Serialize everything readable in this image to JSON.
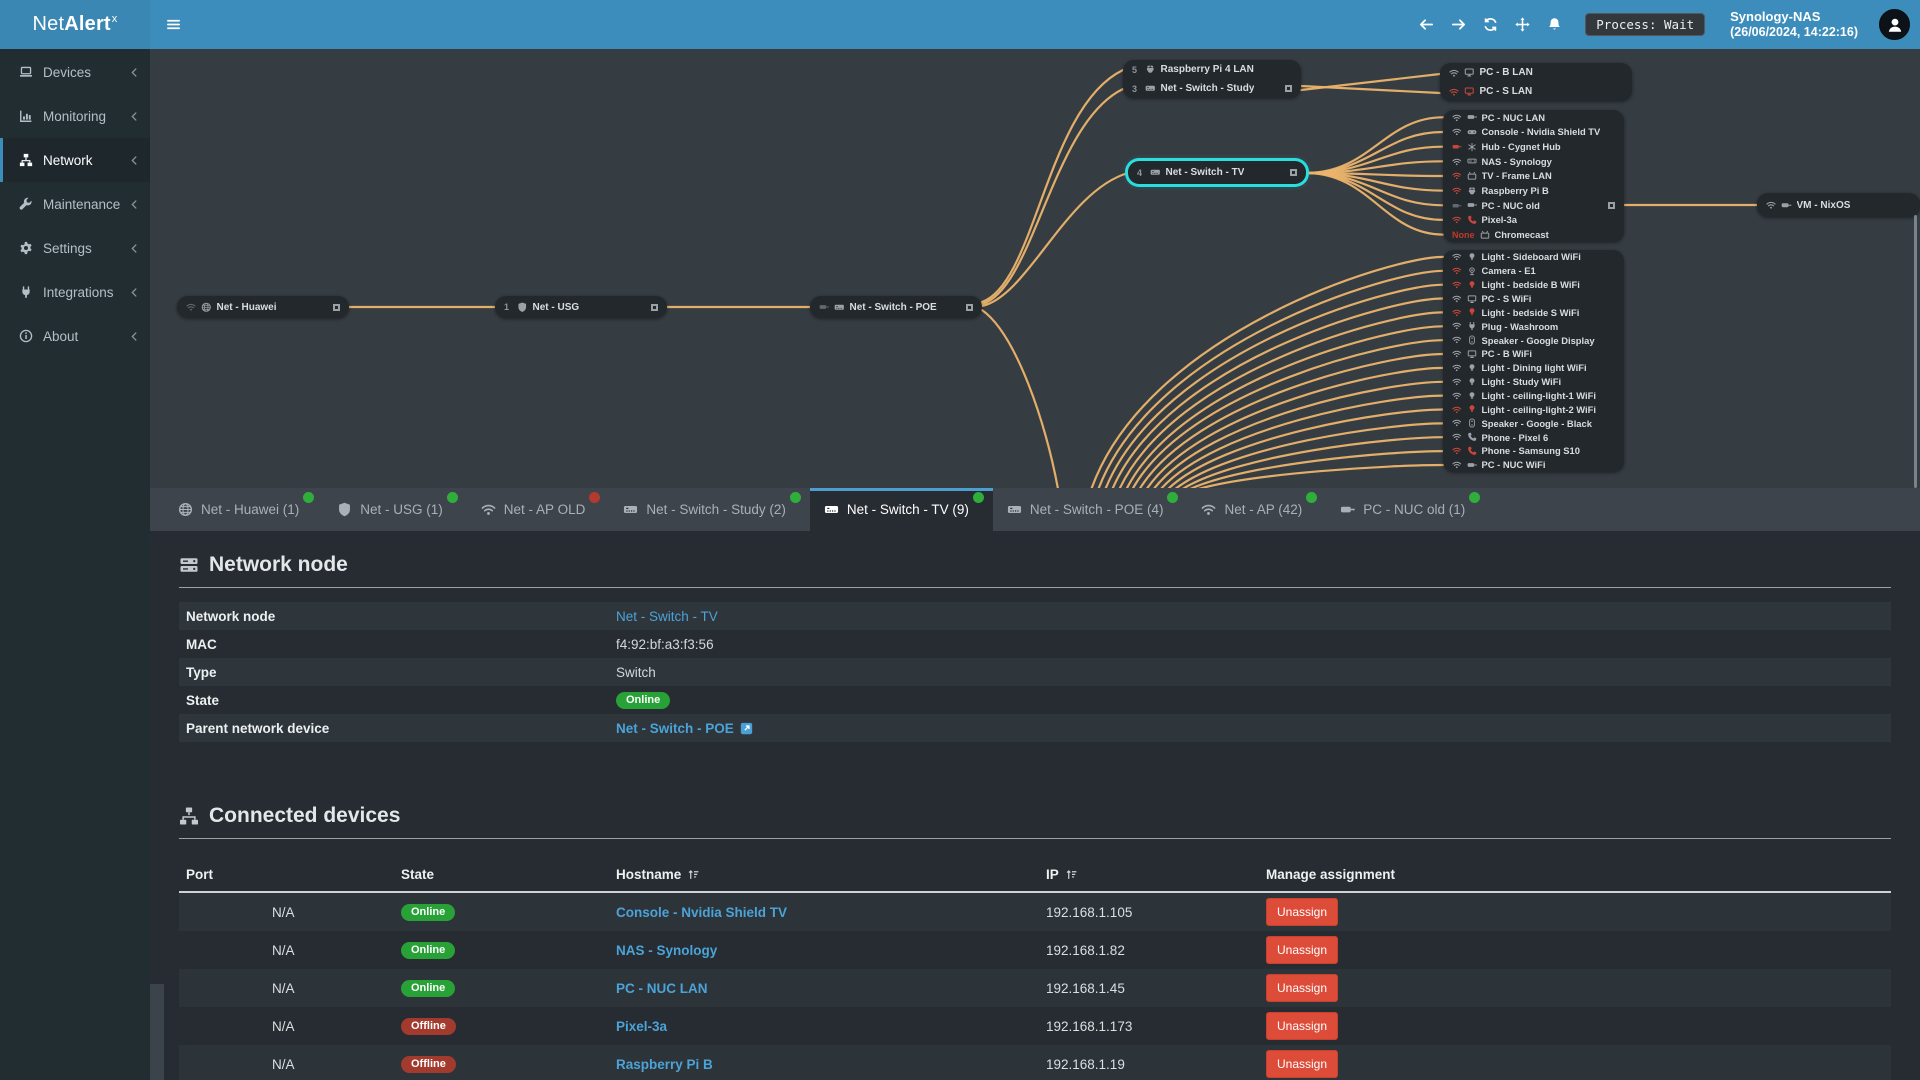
{
  "topbar": {
    "logo": {
      "prefix": "Net",
      "bold": "Alert",
      "sup": "x"
    },
    "process_badge": "Process: Wait",
    "host_name": "Synology-NAS",
    "host_time": "(26/06/2024, 14:22:16)"
  },
  "sidebar": {
    "items": [
      {
        "label": "Devices",
        "icon": "laptop",
        "active": false
      },
      {
        "label": "Monitoring",
        "icon": "chart",
        "active": false
      },
      {
        "label": "Network",
        "icon": "network",
        "active": true
      },
      {
        "label": "Maintenance",
        "icon": "wrench",
        "active": false
      },
      {
        "label": "Settings",
        "icon": "gear",
        "active": false
      },
      {
        "label": "Integrations",
        "icon": "plug",
        "active": false
      },
      {
        "label": "About",
        "icon": "info",
        "active": false
      }
    ]
  },
  "diagram": {
    "huawei": {
      "label": "Net - Huawei",
      "conn": "wifi",
      "conn_color": "dim",
      "icon": "globe",
      "connector": true
    },
    "usg": {
      "label": "Net - USG",
      "badge": "1",
      "icon": "shield",
      "connector": true
    },
    "poe": {
      "label": "Net - Switch - POE",
      "conn": "eth",
      "conn_color": "dim",
      "icon": "switch",
      "connector": true
    },
    "study_group": {
      "rows": [
        {
          "badge": "5",
          "icon": "raspberry",
          "icon_color": "gray",
          "label": "Raspberry Pi 4 LAN"
        },
        {
          "badge": "3",
          "icon": "switch",
          "icon_color": "gray",
          "label": "Net - Switch - Study",
          "connector": true
        }
      ]
    },
    "pc_group": {
      "rows": [
        {
          "conn": "wifi",
          "conn_color": "gray",
          "icon": "pc",
          "icon_color": "gray",
          "label": "PC - B LAN"
        },
        {
          "conn": "wifi",
          "conn_color": "red",
          "icon": "pc",
          "icon_color": "red",
          "label": "PC - S LAN"
        }
      ]
    },
    "tv": {
      "label": "Net - Switch - TV",
      "badge": "4",
      "icon": "switch",
      "connector": true,
      "highlighted": true
    },
    "nixos": {
      "label": "VM - NixOS",
      "conn": "wifi",
      "conn_color": "gray",
      "icon": "eth"
    },
    "group1": {
      "rows": [
        {
          "conn": "wifi",
          "conn_color": "gray",
          "icon": "eth",
          "icon_color": "gray",
          "label": "PC - NUC LAN"
        },
        {
          "conn": "wifi",
          "conn_color": "gray",
          "icon": "gamepad",
          "icon_color": "gray",
          "label": "Console - Nvidia Shield TV"
        },
        {
          "conn": "eth",
          "conn_color": "red",
          "icon": "hub",
          "icon_color": "gray",
          "label": "Hub - Cygnet Hub"
        },
        {
          "conn": "wifi",
          "conn_color": "gray",
          "icon": "hdd",
          "icon_color": "gray",
          "label": "NAS - Synology"
        },
        {
          "conn": "wifi",
          "conn_color": "red",
          "icon": "tv",
          "icon_color": "gray",
          "label": "TV - Frame LAN"
        },
        {
          "conn": "wifi",
          "conn_color": "red",
          "icon": "raspberry",
          "icon_color": "gray",
          "label": "Raspberry Pi B"
        },
        {
          "conn": "eth",
          "conn_color": "dim",
          "icon": "eth",
          "icon_color": "gray",
          "label": "PC - NUC old",
          "connector": true
        },
        {
          "conn": "wifi",
          "conn_color": "red",
          "icon": "phone",
          "icon_color": "red",
          "label": "Pixel-3a"
        },
        {
          "port_label": "None",
          "icon": "tv",
          "icon_color": "gray",
          "label": "Chromecast"
        }
      ]
    },
    "group2": {
      "rows": [
        {
          "conn": "wifi",
          "conn_color": "gray",
          "icon": "bulb",
          "icon_color": "gray",
          "label": "Light - Sideboard WiFi"
        },
        {
          "conn": "wifi",
          "conn_color": "red",
          "icon": "camera",
          "icon_color": "gray",
          "label": "Camera - E1"
        },
        {
          "conn": "wifi",
          "conn_color": "red",
          "icon": "bulb",
          "icon_color": "red",
          "label": "Light - bedside B WiFi"
        },
        {
          "conn": "wifi",
          "conn_color": "gray",
          "icon": "pc",
          "icon_color": "gray",
          "label": "PC - S WiFi"
        },
        {
          "conn": "wifi",
          "conn_color": "red",
          "icon": "bulb",
          "icon_color": "red",
          "label": "Light - bedside S WiFi"
        },
        {
          "conn": "wifi",
          "conn_color": "gray",
          "icon": "plug",
          "icon_color": "gray",
          "label": "Plug - Washroom"
        },
        {
          "conn": "wifi",
          "conn_color": "gray",
          "icon": "speaker",
          "icon_color": "gray",
          "label": "Speaker - Google Display"
        },
        {
          "conn": "wifi",
          "conn_color": "gray",
          "icon": "pc",
          "icon_color": "gray",
          "label": "PC - B WiFi"
        },
        {
          "conn": "wifi",
          "conn_color": "gray",
          "icon": "bulb",
          "icon_color": "gray",
          "label": "Light - Dining light WiFi"
        },
        {
          "conn": "wifi",
          "conn_color": "gray",
          "icon": "bulb",
          "icon_color": "gray",
          "label": "Light - Study WiFi"
        },
        {
          "conn": "wifi",
          "conn_color": "gray",
          "icon": "bulb",
          "icon_color": "gray",
          "label": "Light - ceiling-light-1 WiFi"
        },
        {
          "conn": "wifi",
          "conn_color": "red",
          "icon": "bulb",
          "icon_color": "red",
          "label": "Light - ceiling-light-2 WiFi"
        },
        {
          "conn": "wifi",
          "conn_color": "gray",
          "icon": "speaker",
          "icon_color": "gray",
          "label": "Speaker - Google - Black"
        },
        {
          "conn": "wifi",
          "conn_color": "gray",
          "icon": "phone",
          "icon_color": "gray",
          "label": "Phone - Pixel 6"
        },
        {
          "conn": "wifi",
          "conn_color": "red",
          "icon": "phone",
          "icon_color": "red",
          "label": "Phone - Samsung S10"
        },
        {
          "conn": "wifi",
          "conn_color": "gray",
          "icon": "eth",
          "icon_color": "gray",
          "label": "PC - NUC WiFi"
        }
      ]
    }
  },
  "tabs": [
    {
      "label": "Net - Huawei (1)",
      "icon": "globe",
      "dot": "green",
      "active": false
    },
    {
      "label": "Net - USG (1)",
      "icon": "shield",
      "dot": "green",
      "active": false
    },
    {
      "label": "Net - AP OLD",
      "icon": "wifi",
      "dot": "red",
      "active": false
    },
    {
      "label": "Net - Switch - Study (2)",
      "icon": "switch",
      "dot": "green",
      "active": false
    },
    {
      "label": "Net - Switch - TV (9)",
      "icon": "switch",
      "dot": "green",
      "active": true
    },
    {
      "label": "Net - Switch - POE (4)",
      "icon": "switch",
      "dot": "green",
      "active": false
    },
    {
      "label": "Net - AP (42)",
      "icon": "wifi",
      "dot": "green",
      "active": false
    },
    {
      "label": "PC - NUC old (1)",
      "icon": "eth",
      "dot": "green",
      "active": false
    }
  ],
  "network_node": {
    "title": "Network node",
    "rows": [
      {
        "label": "Network node",
        "value": "Net - Switch - TV",
        "link": true
      },
      {
        "label": "MAC",
        "value": "f4:92:bf:a3:f3:56"
      },
      {
        "label": "Type",
        "value": "Switch"
      },
      {
        "label": "State",
        "value": "Online",
        "pill": "online"
      },
      {
        "label": "Parent network device",
        "value": "Net - Switch - POE",
        "link": true,
        "bold": true,
        "external": true
      }
    ]
  },
  "connected_devices": {
    "title": "Connected devices",
    "columns": {
      "port": "Port",
      "state": "State",
      "hostname": "Hostname",
      "ip": "IP",
      "manage": "Manage assignment"
    },
    "rows": [
      {
        "port": "N/A",
        "state": "Online",
        "hostname": "Console - Nvidia Shield TV",
        "ip": "192.168.1.105",
        "action": "Unassign"
      },
      {
        "port": "N/A",
        "state": "Online",
        "hostname": "NAS - Synology",
        "ip": "192.168.1.82",
        "action": "Unassign"
      },
      {
        "port": "N/A",
        "state": "Online",
        "hostname": "PC - NUC LAN",
        "ip": "192.168.1.45",
        "action": "Unassign"
      },
      {
        "port": "N/A",
        "state": "Offline",
        "hostname": "Pixel-3a",
        "ip": "192.168.1.173",
        "action": "Unassign"
      },
      {
        "port": "N/A",
        "state": "Offline",
        "hostname": "Raspberry Pi B",
        "ip": "192.168.1.19",
        "action": "Unassign"
      }
    ]
  },
  "colors": {
    "accent": "#3c8dbc",
    "online": "#28a237",
    "offline": "#a23b2e",
    "danger": "#dd4b39",
    "link": "#4ba3d8",
    "highlight": "#28dede",
    "edge": "#ecb46c"
  }
}
